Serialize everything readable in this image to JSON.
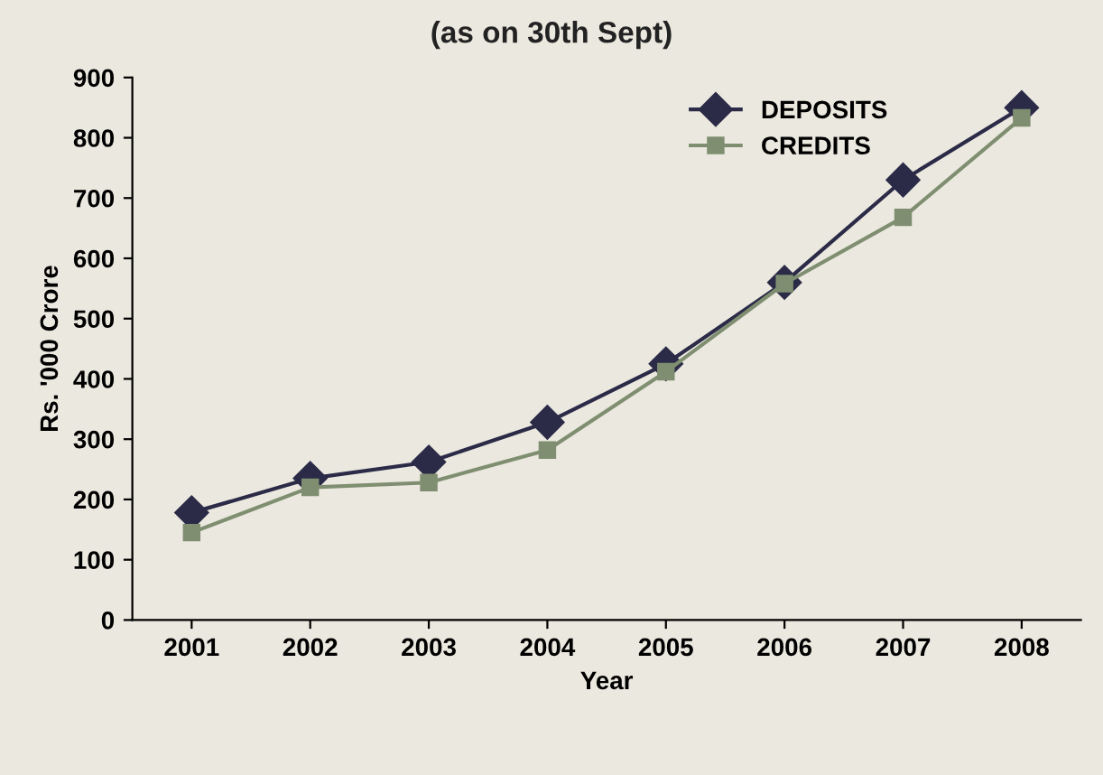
{
  "chart_data": {
    "type": "line",
    "title": "(as on 30th Sept)",
    "xlabel": "Year",
    "ylabel": "Rs. '000 Crore",
    "categories": [
      "2001",
      "2002",
      "2003",
      "2004",
      "2005",
      "2006",
      "2007",
      "2008"
    ],
    "series": [
      {
        "name": "DEPOSITS",
        "color": "#2b2b48",
        "marker": "diamond",
        "values": [
          178,
          235,
          262,
          328,
          425,
          560,
          730,
          850
        ]
      },
      {
        "name": "CREDITS",
        "color": "#7f8e70",
        "marker": "square",
        "values": [
          145,
          220,
          228,
          282,
          412,
          558,
          668,
          833
        ]
      }
    ],
    "ylim": [
      0,
      900
    ],
    "yticks": [
      0,
      100,
      200,
      300,
      400,
      500,
      600,
      700,
      800,
      900
    ],
    "grid": false,
    "legend": "top right",
    "line_style": "solid"
  }
}
